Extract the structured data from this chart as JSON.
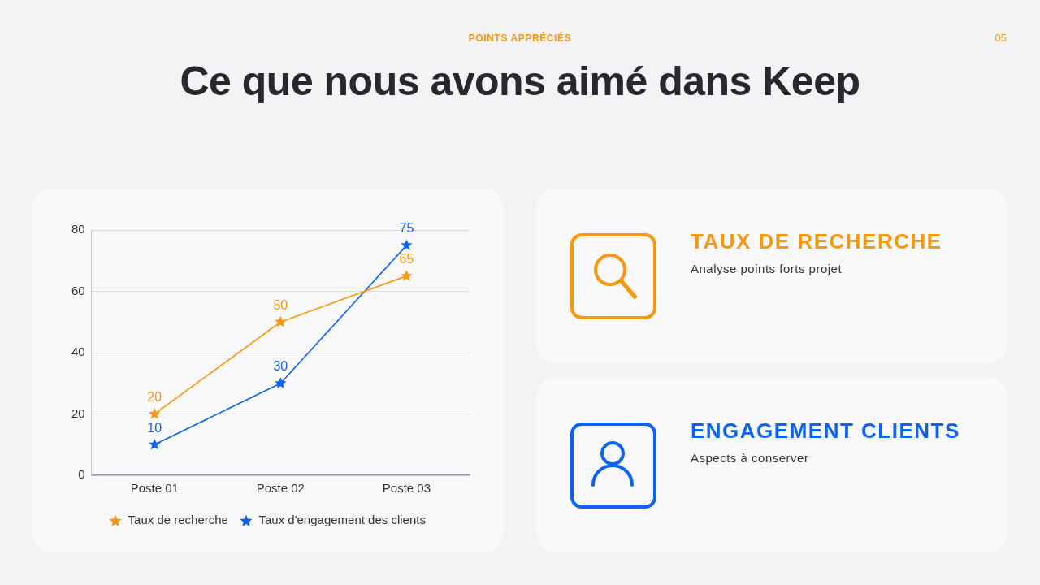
{
  "chart_data": {
    "type": "line",
    "title": "Ce que nous avons aimé dans Keep",
    "subtitle": "POINTS APPRÉCIÉS",
    "categories": [
      "Poste 01",
      "Poste 02",
      "Poste 03"
    ],
    "series": [
      {
        "name": "Taux de recherche",
        "color": "#f7980f",
        "values": [
          20,
          50,
          65
        ]
      },
      {
        "name": "Taux d'engagement des clients",
        "color": "#0b63f3",
        "values": [
          10,
          30,
          75
        ]
      }
    ],
    "ylim": [
      0,
      80
    ],
    "yticks": [
      0,
      20,
      40,
      60,
      80
    ],
    "grid": "y",
    "legend": "bottom",
    "marker": "star",
    "line_style": "solid",
    "data_labels": true,
    "annotations": [
      "05",
      "TAUX DE RECHERCHE",
      "Analyse points forts projet",
      "ENGAGEMENT CLIENTS",
      "Aspects à conserver"
    ]
  }
}
